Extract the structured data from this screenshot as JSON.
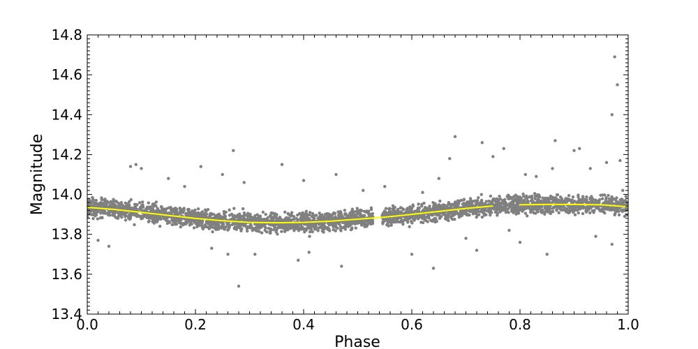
{
  "chart_data": {
    "type": "scatter",
    "title": "",
    "xlabel": "Phase",
    "ylabel": "Magnitude",
    "xlim": [
      0.0,
      1.0
    ],
    "ylim": [
      13.4,
      14.8
    ],
    "x_ticks": [
      0.0,
      0.2,
      0.4,
      0.6,
      0.8,
      1.0
    ],
    "x_tick_labels": [
      "0.0",
      "0.2",
      "0.4",
      "0.6",
      "0.8",
      "1.0"
    ],
    "y_ticks": [
      13.4,
      13.6,
      13.8,
      14.0,
      14.2,
      14.4,
      14.6,
      14.8
    ],
    "y_tick_labels": [
      "13.4",
      "13.6",
      "13.8",
      "14.0",
      "14.2",
      "14.4",
      "14.6",
      "14.8"
    ],
    "grid": false,
    "series": [
      {
        "kind": "points",
        "color": "#808080",
        "points": [
          [
            0.01,
            13.98
          ],
          [
            0.03,
            13.92
          ],
          [
            0.05,
            13.95
          ],
          [
            0.07,
            13.9
          ],
          [
            0.08,
            14.14
          ],
          [
            0.09,
            14.15
          ],
          [
            0.1,
            14.13
          ],
          [
            0.04,
            13.74
          ],
          [
            0.02,
            13.77
          ],
          [
            0.12,
            13.88
          ],
          [
            0.15,
            14.08
          ],
          [
            0.18,
            14.04
          ],
          [
            0.21,
            14.14
          ],
          [
            0.23,
            13.73
          ],
          [
            0.25,
            14.1
          ],
          [
            0.26,
            13.7
          ],
          [
            0.27,
            14.22
          ],
          [
            0.28,
            13.54
          ],
          [
            0.29,
            14.06
          ],
          [
            0.31,
            13.7
          ],
          [
            0.33,
            13.9
          ],
          [
            0.36,
            14.15
          ],
          [
            0.39,
            13.67
          ],
          [
            0.4,
            14.07
          ],
          [
            0.41,
            13.71
          ],
          [
            0.46,
            14.1
          ],
          [
            0.47,
            13.64
          ],
          [
            0.5,
            13.92
          ],
          [
            0.51,
            14.02
          ],
          [
            0.55,
            14.04
          ],
          [
            0.57,
            13.88
          ],
          [
            0.6,
            13.7
          ],
          [
            0.62,
            14.01
          ],
          [
            0.64,
            13.63
          ],
          [
            0.65,
            14.08
          ],
          [
            0.67,
            14.18
          ],
          [
            0.68,
            14.29
          ],
          [
            0.7,
            13.78
          ],
          [
            0.72,
            13.72
          ],
          [
            0.73,
            14.26
          ],
          [
            0.75,
            14.19
          ],
          [
            0.77,
            14.23
          ],
          [
            0.78,
            13.82
          ],
          [
            0.8,
            13.76
          ],
          [
            0.81,
            14.1
          ],
          [
            0.83,
            14.09
          ],
          [
            0.85,
            13.7
          ],
          [
            0.86,
            14.13
          ],
          [
            0.865,
            14.27
          ],
          [
            0.9,
            14.22
          ],
          [
            0.91,
            14.23
          ],
          [
            0.93,
            14.13
          ],
          [
            0.94,
            13.79
          ],
          [
            0.96,
            14.16
          ],
          [
            0.97,
            14.4
          ],
          [
            0.975,
            14.69
          ],
          [
            0.98,
            14.55
          ],
          [
            0.985,
            14.17
          ],
          [
            0.97,
            13.75
          ],
          [
            0.99,
            14.02
          ]
        ]
      },
      {
        "kind": "line",
        "color": "#ffff00",
        "x": [
          0.0,
          0.05,
          0.1,
          0.15,
          0.2,
          0.25,
          0.3,
          0.35,
          0.4,
          0.45,
          0.5,
          0.53,
          0.55,
          0.6,
          0.65,
          0.7,
          0.75,
          0.775,
          0.8,
          0.85,
          0.9,
          0.95,
          1.0
        ],
        "y": [
          13.935,
          13.925,
          13.91,
          13.895,
          13.88,
          13.868,
          13.86,
          13.858,
          13.86,
          13.866,
          13.876,
          13.882,
          13.886,
          13.9,
          13.915,
          13.93,
          13.942,
          13.945,
          13.948,
          13.95,
          13.95,
          13.948,
          13.938
        ],
        "gaps": [
          [
            0.53,
            0.545
          ],
          [
            0.77,
            0.78
          ]
        ]
      }
    ]
  }
}
